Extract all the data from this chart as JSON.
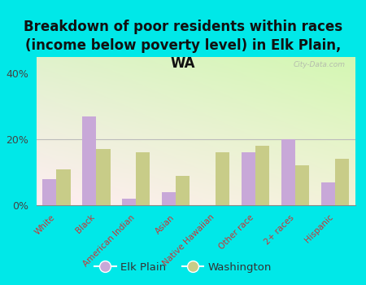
{
  "categories": [
    "White",
    "Black",
    "American Indian",
    "Asian",
    "Native Hawaiian",
    "Other race",
    "2+ races",
    "Hispanic"
  ],
  "elk_plain": [
    8,
    27,
    2,
    4,
    0,
    16,
    20,
    7
  ],
  "washington": [
    11,
    17,
    16,
    9,
    16,
    18,
    12,
    14
  ],
  "elk_plain_color": "#c8a8d8",
  "washington_color": "#c8cc88",
  "title": "Breakdown of poor residents within races\n(income below poverty level) in Elk Plain,\nWA",
  "ylim": [
    0,
    45
  ],
  "yticks": [
    0,
    20,
    40
  ],
  "ytick_labels": [
    "0%",
    "20%",
    "40%"
  ],
  "background_color": "#00e8e8",
  "watermark": "City-Data.com",
  "legend_elk": "Elk Plain",
  "legend_wa": "Washington",
  "title_fontsize": 12,
  "bar_width": 0.35,
  "xticklabel_color": "#cc3333",
  "ytick_color": "#444444",
  "title_color": "#111111"
}
